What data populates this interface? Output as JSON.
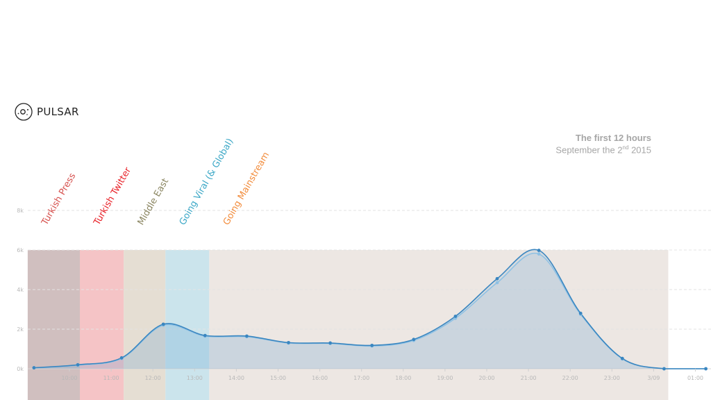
{
  "brand": {
    "name": "PULSAR",
    "logo_icon": "pulsar-logo-icon"
  },
  "header": {
    "title": "The first 12 hours",
    "subtitle_prefix": "September the 2",
    "subtitle_sup": "nd",
    "subtitle_suffix": " 2015"
  },
  "chart_data": {
    "type": "area",
    "x_ticks": [
      "10:00",
      "11:00",
      "12:00",
      "13:00",
      "14:00",
      "15:00",
      "16:00",
      "17:00",
      "18:00",
      "19:00",
      "20:00",
      "21:00",
      "22:00",
      "23:00",
      "3/09",
      "01:00"
    ],
    "y_ticks": [
      "0k",
      "2k",
      "4k",
      "6k",
      "8k"
    ],
    "ylim": [
      0,
      8000
    ],
    "xlim": [
      9.0,
      25.3
    ],
    "grid": true,
    "series": [
      {
        "color": "#3a86c0",
        "points": [
          [
            9.15,
            50
          ],
          [
            10.2,
            200
          ],
          [
            11.25,
            550
          ],
          [
            12.25,
            2250
          ],
          [
            13.25,
            1680
          ],
          [
            14.25,
            1650
          ],
          [
            15.25,
            1320
          ],
          [
            16.25,
            1300
          ],
          [
            17.25,
            1180
          ],
          [
            18.25,
            1480
          ],
          [
            19.25,
            2650
          ],
          [
            20.25,
            4550
          ],
          [
            21.25,
            5980
          ],
          [
            22.25,
            2800
          ],
          [
            23.25,
            520
          ],
          [
            24.25,
            0
          ],
          [
            25.25,
            0
          ]
        ]
      },
      {
        "color": "#8ec1e4",
        "points": [
          [
            9.15,
            40
          ],
          [
            10.2,
            180
          ],
          [
            11.25,
            520
          ],
          [
            12.25,
            2200
          ],
          [
            13.25,
            1650
          ],
          [
            14.25,
            1620
          ],
          [
            15.25,
            1300
          ],
          [
            16.25,
            1280
          ],
          [
            17.25,
            1150
          ],
          [
            18.25,
            1430
          ],
          [
            19.25,
            2550
          ],
          [
            20.25,
            4350
          ],
          [
            21.25,
            5800
          ],
          [
            22.25,
            2750
          ],
          [
            23.25,
            500
          ],
          [
            24.25,
            0
          ],
          [
            25.25,
            0
          ]
        ]
      }
    ],
    "bands": [
      {
        "label": "Turkish Press",
        "start": 9.0,
        "end": 10.25,
        "color": "#c0a9a9",
        "label_color": "#d6504d"
      },
      {
        "label": "Turkish Twitter",
        "start": 10.25,
        "end": 11.3,
        "color": "#f1b0b3",
        "label_color": "#e81e25"
      },
      {
        "label": "Middle East",
        "start": 11.3,
        "end": 12.3,
        "color": "#dcd3c4",
        "label_color": "#8a8560"
      },
      {
        "label": "Going Viral (& Global)",
        "start": 12.3,
        "end": 13.35,
        "color": "#b9dbe6",
        "label_color": "#3aa7c6"
      },
      {
        "label": "Going Mainstream",
        "start": 13.35,
        "end": 24.35,
        "color": "#e7dfd9",
        "label_color": "#f28b3a"
      }
    ]
  }
}
